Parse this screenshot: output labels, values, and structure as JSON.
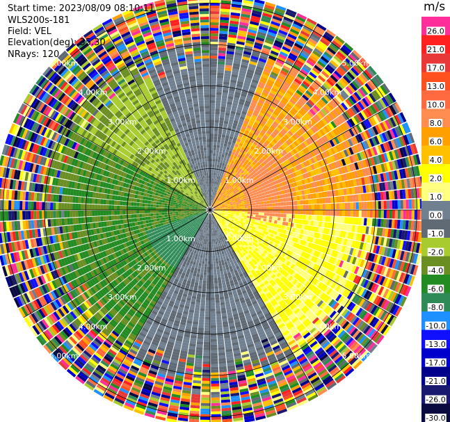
{
  "meta": {
    "start_time": "Start time: 2023/08/09 08:10:11",
    "instrument": "WLS200s-181",
    "field": "Field: VEL",
    "elevation": "Elevation(deg): 35.30",
    "nrays": "NRays: 120"
  },
  "chart_data": {
    "type": "heatmap",
    "projection": "polar-ppi",
    "ring_labels": [
      "1.00km",
      "2.00km",
      "3.00km",
      "4.00km",
      "5.00km"
    ],
    "ring_ranges_km": [
      1,
      2,
      3,
      4,
      5
    ],
    "max_range_km": 5.2,
    "n_rays": 120,
    "colorbar": {
      "unit": "m/s",
      "ticks": [
        "26.0",
        "21.0",
        "17.0",
        "13.0",
        "10.0",
        "8.0",
        "6.0",
        "4.0",
        "2.0",
        "1.0",
        "0.0",
        "-1.0",
        "-2.0",
        "-4.0",
        "-6.0",
        "-8.0",
        "-10.0",
        "-13.0",
        "-17.0",
        "-21.0",
        "-26.0",
        "-30.0"
      ],
      "colors": [
        "#ff2e9a",
        "#ff2020",
        "#e83838",
        "#ff5020",
        "#ff6a40",
        "#ff8c50",
        "#ffa000",
        "#ffc000",
        "#ffff00",
        "#ffff80",
        "#708090",
        "#606a75",
        "#a8cc30",
        "#6b8e23",
        "#228b22",
        "#2e8b57",
        "#1e90ff",
        "#1010ff",
        "#0000cd",
        "#00008b",
        "#191970",
        "#0a0a40"
      ]
    }
  }
}
